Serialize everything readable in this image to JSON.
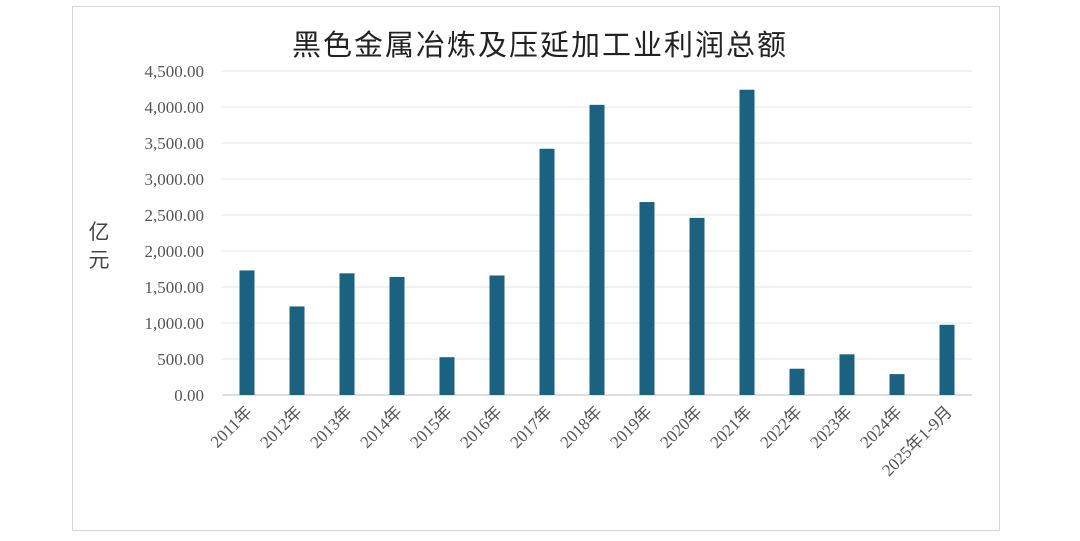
{
  "chart_data": {
    "type": "bar",
    "title": "黑色金属冶炼及压延加工业利润总额",
    "ylabel": "亿元",
    "xlabel": "",
    "ylim": [
      0,
      4500
    ],
    "ytick_step": 500,
    "ytick_labels": [
      "0.00",
      "500.00",
      "1,000.00",
      "1,500.00",
      "2,000.00",
      "2,500.00",
      "3,000.00",
      "3,500.00",
      "4,000.00",
      "4,500.00"
    ],
    "grid": true,
    "legend": "none",
    "bar_color": "#1a6280",
    "categories": [
      "2011年",
      "2012年",
      "2013年",
      "2014年",
      "2015年",
      "2016年",
      "2017年",
      "2018年",
      "2019年",
      "2020年",
      "2021年",
      "2022年",
      "2023年",
      "2024年",
      "2025年1-9月"
    ],
    "values": [
      1730,
      1230,
      1690,
      1640,
      525,
      1660,
      3420,
      4030,
      2680,
      2460,
      4240,
      365,
      565,
      290,
      975
    ]
  }
}
